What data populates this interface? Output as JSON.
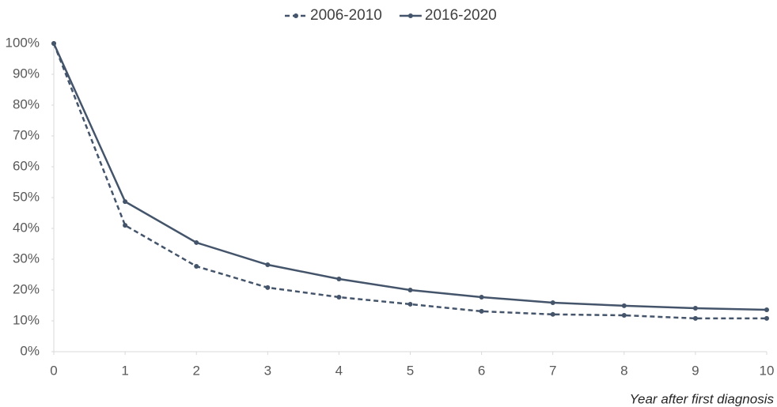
{
  "chart_data": {
    "type": "line",
    "x_label": "Year after first diagnosis",
    "x": [
      0,
      1,
      2,
      3,
      4,
      5,
      6,
      7,
      8,
      9,
      10
    ],
    "xlim": [
      0,
      10
    ],
    "xticks": [
      0,
      1,
      2,
      3,
      4,
      5,
      6,
      7,
      8,
      9,
      10
    ],
    "ylim": [
      0,
      100
    ],
    "yticks": [
      {
        "value": 0,
        "label": "0%"
      },
      {
        "value": 10,
        "label": "10%"
      },
      {
        "value": 20,
        "label": "20%"
      },
      {
        "value": 30,
        "label": "30%"
      },
      {
        "value": 40,
        "label": "40%"
      },
      {
        "value": 50,
        "label": "50%"
      },
      {
        "value": 60,
        "label": "60%"
      },
      {
        "value": 70,
        "label": "70%"
      },
      {
        "value": 80,
        "label": "80%"
      },
      {
        "value": 90,
        "label": "90%"
      },
      {
        "value": 100,
        "label": "100%"
      }
    ],
    "grid": false,
    "legend": "top",
    "series": [
      {
        "name": "2006-2010",
        "color": "#44546a",
        "style": "dashed",
        "values": [
          100,
          41.0,
          27.7,
          20.8,
          17.7,
          15.4,
          13.1,
          12.1,
          11.8,
          10.8,
          10.8
        ]
      },
      {
        "name": "2016-2020",
        "color": "#44546a",
        "style": "solid",
        "values": [
          100,
          48.7,
          35.4,
          28.2,
          23.6,
          20.0,
          17.7,
          15.9,
          14.9,
          14.1,
          13.6
        ]
      }
    ]
  }
}
